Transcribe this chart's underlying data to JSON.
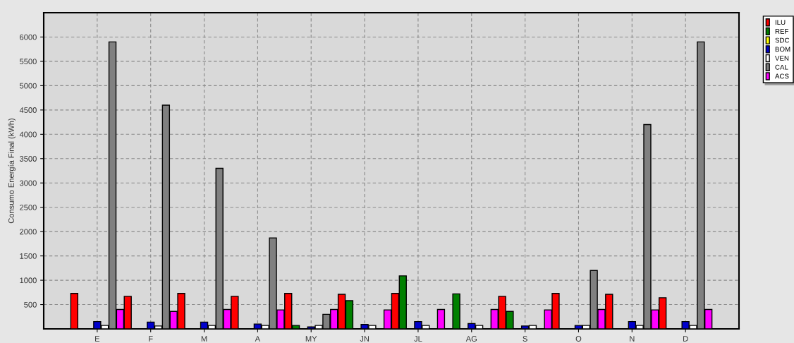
{
  "chart_data": {
    "type": "bar",
    "ylabel": "Consumo Energía Final (kWh)",
    "categories": [
      "E",
      "F",
      "M",
      "A",
      "MY",
      "JN",
      "JL",
      "AG",
      "S",
      "O",
      "N",
      "D"
    ],
    "series": [
      {
        "name": "ILU",
        "color": "#ff0000",
        "values": [
          730,
          670,
          730,
          670,
          730,
          710,
          730,
          null,
          670,
          730,
          710,
          640
        ]
      },
      {
        "name": "REF",
        "color": "#008000",
        "values": [
          null,
          null,
          null,
          null,
          70,
          580,
          1090,
          720,
          360,
          null,
          null,
          null
        ]
      },
      {
        "name": "SDC",
        "color": "#ffff00",
        "values": [
          null,
          null,
          null,
          null,
          null,
          null,
          null,
          null,
          null,
          null,
          null,
          null
        ]
      },
      {
        "name": "BOM",
        "color": "#0000cc",
        "values": [
          150,
          140,
          140,
          100,
          40,
          90,
          150,
          110,
          60,
          70,
          150,
          150
        ]
      },
      {
        "name": "VEN",
        "color": "#ffffff",
        "values": [
          70,
          60,
          70,
          70,
          70,
          70,
          70,
          70,
          70,
          70,
          70,
          70
        ]
      },
      {
        "name": "CAL",
        "color": "#808080",
        "values": [
          5900,
          4600,
          3300,
          1870,
          300,
          null,
          null,
          null,
          null,
          1200,
          4200,
          5900
        ]
      },
      {
        "name": "ACS",
        "color": "#ff00ff",
        "values": [
          400,
          360,
          400,
          390,
          400,
          390,
          400,
          400,
          390,
          400,
          390,
          400
        ]
      }
    ],
    "ylim": [
      0,
      6500
    ],
    "yticks": [
      500,
      1000,
      1500,
      2000,
      2500,
      3000,
      3500,
      4000,
      4500,
      5000,
      5500,
      6000
    ],
    "grid": true,
    "legend": "top right"
  }
}
